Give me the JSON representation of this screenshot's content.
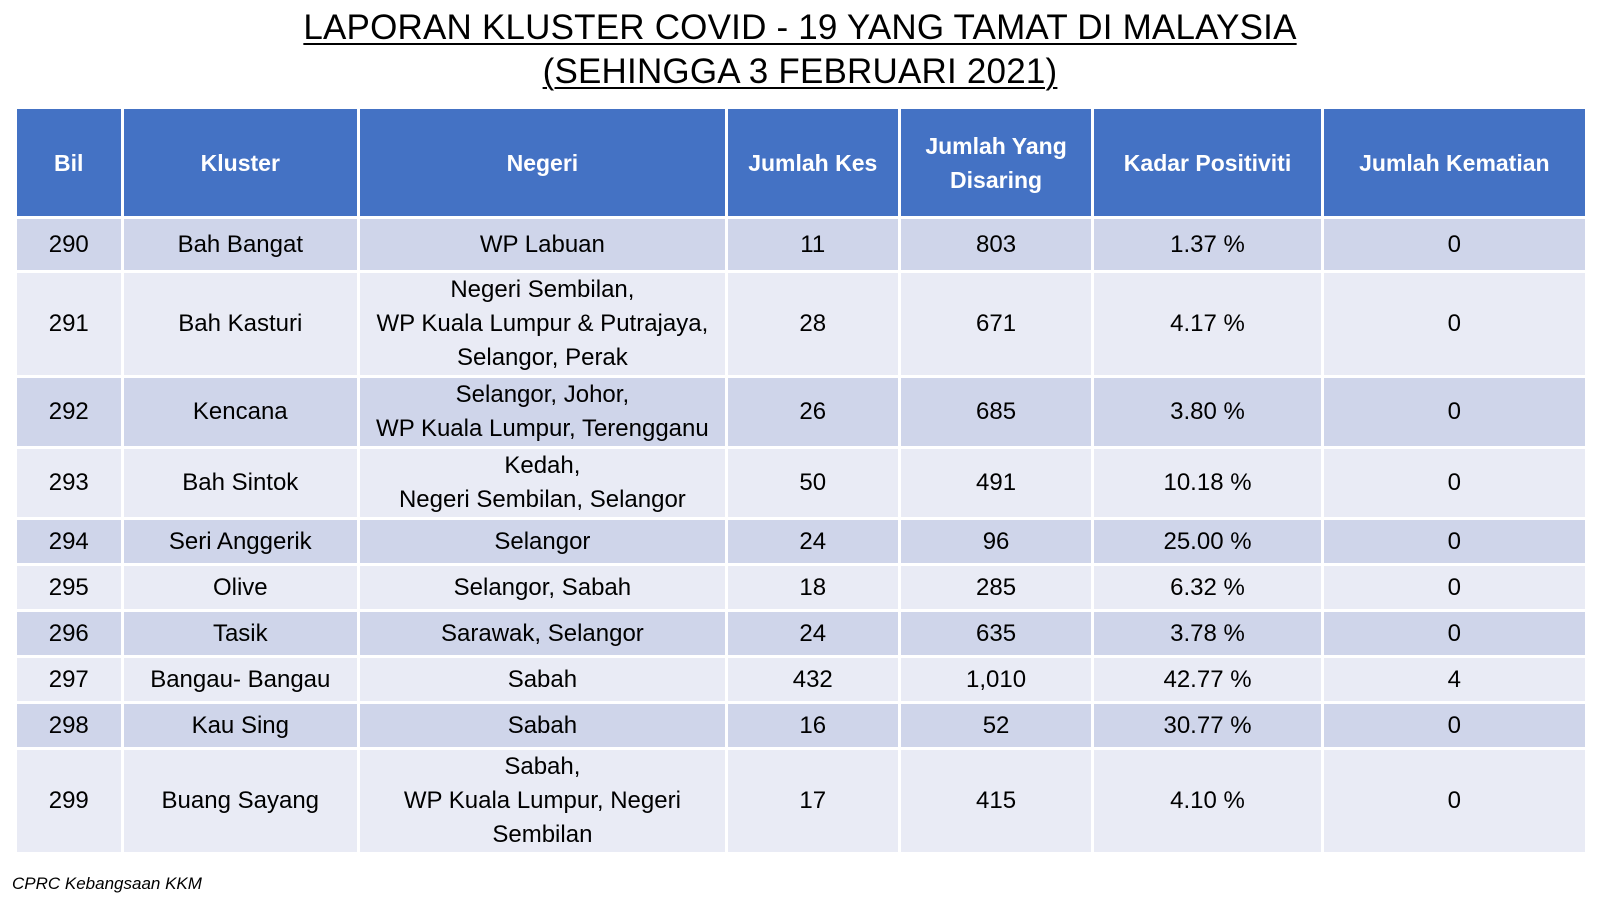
{
  "title": {
    "line1": "LAPORAN KLUSTER COVID - 19 YANG TAMAT DI MALAYSIA",
    "line2": "(SEHINGGA 3 FEBRUARI 2021)"
  },
  "table": {
    "headers": {
      "bil": "Bil",
      "kluster": "Kluster",
      "negeri": "Negeri",
      "jumlah_kes": "Jumlah Kes",
      "jumlah_disaring_line1": "Jumlah Yang",
      "jumlah_disaring_line2": "Disaring",
      "kadar_positiviti": "Kadar Positiviti",
      "jumlah_kematian": "Jumlah Kematian"
    },
    "rows": [
      {
        "bil": "290",
        "kluster": "Bah Bangat",
        "negeri": [
          "WP Labuan"
        ],
        "jumlah_kes": "11",
        "jumlah_disaring": "803",
        "kadar_positiviti": "1.37 %",
        "jumlah_kematian": "0"
      },
      {
        "bil": "291",
        "kluster": "Bah Kasturi",
        "negeri": [
          "Negeri Sembilan,",
          "WP Kuala Lumpur & Putrajaya,",
          "Selangor, Perak"
        ],
        "jumlah_kes": "28",
        "jumlah_disaring": "671",
        "kadar_positiviti": "4.17 %",
        "jumlah_kematian": "0"
      },
      {
        "bil": "292",
        "kluster": "Kencana",
        "negeri": [
          "Selangor,  Johor,",
          "WP Kuala Lumpur, Terengganu"
        ],
        "jumlah_kes": "26",
        "jumlah_disaring": "685",
        "kadar_positiviti": "3.80 %",
        "jumlah_kematian": "0"
      },
      {
        "bil": "293",
        "kluster": "Bah Sintok",
        "negeri": [
          "Kedah,",
          "Negeri Sembilan, Selangor"
        ],
        "jumlah_kes": "50",
        "jumlah_disaring": "491",
        "kadar_positiviti": "10.18 %",
        "jumlah_kematian": "0"
      },
      {
        "bil": "294",
        "kluster": "Seri Anggerik",
        "negeri": [
          "Selangor"
        ],
        "jumlah_kes": "24",
        "jumlah_disaring": "96",
        "kadar_positiviti": "25.00 %",
        "jumlah_kematian": "0"
      },
      {
        "bil": "295",
        "kluster": "Olive",
        "negeri": [
          "Selangor, Sabah"
        ],
        "jumlah_kes": "18",
        "jumlah_disaring": "285",
        "kadar_positiviti": "6.32 %",
        "jumlah_kematian": "0"
      },
      {
        "bil": "296",
        "kluster": "Tasik",
        "negeri": [
          "Sarawak, Selangor"
        ],
        "jumlah_kes": "24",
        "jumlah_disaring": "635",
        "kadar_positiviti": "3.78 %",
        "jumlah_kematian": "0"
      },
      {
        "bil": "297",
        "kluster": "Bangau- Bangau",
        "negeri": [
          "Sabah"
        ],
        "jumlah_kes": "432",
        "jumlah_disaring": "1,010",
        "kadar_positiviti": "42.77 %",
        "jumlah_kematian": "4"
      },
      {
        "bil": "298",
        "kluster": "Kau Sing",
        "negeri": [
          "Sabah"
        ],
        "jumlah_kes": "16",
        "jumlah_disaring": "52",
        "kadar_positiviti": "30.77 %",
        "jumlah_kematian": "0"
      },
      {
        "bil": "299",
        "kluster": "Buang Sayang",
        "negeri": [
          "Sabah,",
          "WP Kuala Lumpur, Negeri",
          "Sembilan"
        ],
        "jumlah_kes": "17",
        "jumlah_disaring": "415",
        "kadar_positiviti": "4.10 %",
        "jumlah_kematian": "0"
      }
    ]
  },
  "footnote": "CPRC Kebangsaan KKM",
  "colors": {
    "header_bg": "#4472c4",
    "row_band_dark": "#cfd5ea",
    "row_band_light": "#e9ebf5"
  }
}
